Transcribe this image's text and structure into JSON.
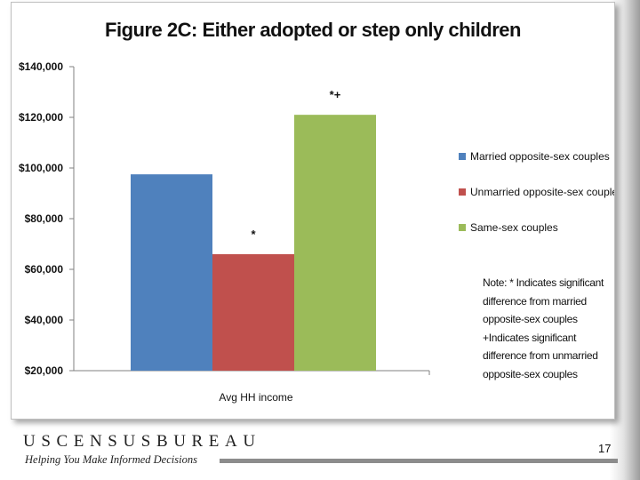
{
  "slide": {
    "page_number": "17",
    "footer_logo": "USCENSUSBUREAU",
    "footer_tagline": "Helping You Make Informed Decisions"
  },
  "chart_data": {
    "type": "bar",
    "title": "Figure 2C: Either adopted or step only children",
    "categories": [
      "Avg HH income"
    ],
    "series": [
      {
        "name": "Married opposite-sex couples",
        "values": [
          97500
        ],
        "color": "#4F81BD",
        "annotation": ""
      },
      {
        "name": "Unmarried opposite-sex couples",
        "values": [
          66000
        ],
        "color": "#C0504D",
        "annotation": "*"
      },
      {
        "name": "Same-sex couples",
        "values": [
          121000
        ],
        "color": "#9BBB59",
        "annotation": "*+"
      }
    ],
    "ylim": [
      20000,
      140000
    ],
    "yticks": [
      20000,
      40000,
      60000,
      80000,
      100000,
      120000,
      140000
    ],
    "ytick_labels": [
      "$20,000",
      "$40,000",
      "$60,000",
      "$80,000",
      "$100,000",
      "$120,000",
      "$140,000"
    ],
    "legend_position": "right",
    "grid": false,
    "note": [
      "Note: * Indicates significant",
      "difference from married",
      "opposite-sex couples",
      "+Indicates significant",
      "difference from unmarried",
      "opposite-sex couples"
    ]
  }
}
